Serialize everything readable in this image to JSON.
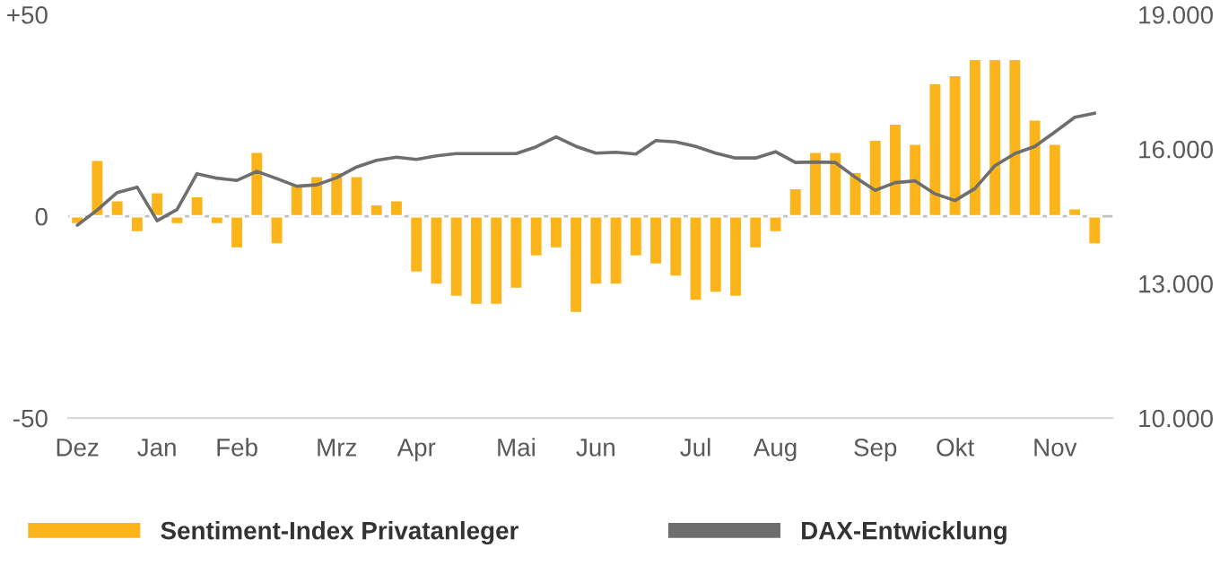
{
  "chart_data": {
    "type": "bar",
    "categories": [
      "Dez",
      null,
      null,
      null,
      "Jan",
      null,
      null,
      null,
      "Feb",
      null,
      null,
      null,
      null,
      "Mrz",
      null,
      null,
      null,
      "Apr",
      null,
      null,
      null,
      null,
      "Mai",
      null,
      null,
      null,
      "Jun",
      null,
      null,
      null,
      null,
      "Jul",
      null,
      null,
      null,
      "Aug",
      null,
      null,
      null,
      null,
      "Sep",
      null,
      null,
      null,
      "Okt",
      null,
      null,
      null,
      null,
      "Nov",
      null,
      null
    ],
    "series": [
      {
        "name": "Sentiment-Index Privatanleger",
        "color": "#fbb41a",
        "values": [
          -2,
          14,
          4,
          -4,
          6,
          -2,
          5,
          -2,
          -8,
          16,
          -7,
          8,
          10,
          11,
          10,
          3,
          4,
          -14,
          -17,
          -20,
          -22,
          -22,
          -18,
          -10,
          -8,
          -24,
          -17,
          -17,
          -10,
          -12,
          -15,
          -21,
          -19,
          -20,
          -8,
          -4,
          7,
          16,
          16,
          11,
          19,
          23,
          18,
          33,
          35,
          39,
          39,
          39,
          24,
          18,
          2,
          -7
        ]
      },
      {
        "name": "DAX-Entwicklung",
        "type": "line",
        "axis": "y2",
        "color": "#6e6e6e",
        "values": [
          14300,
          14640,
          15030,
          15150,
          14400,
          14650,
          15450,
          15350,
          15300,
          15500,
          15340,
          15170,
          15200,
          15360,
          15600,
          15750,
          15820,
          15770,
          15850,
          15900,
          15900,
          15900,
          15900,
          16050,
          16270,
          16060,
          15910,
          15930,
          15890,
          16190,
          16160,
          16060,
          15910,
          15800,
          15800,
          15940,
          15700,
          15710,
          15700,
          15370,
          15080,
          15250,
          15290,
          15000,
          14850,
          15120,
          15630,
          15900,
          16060,
          16380,
          16710,
          16800
        ]
      }
    ],
    "ylim": [
      -50,
      50
    ],
    "yticks": [
      {
        "value": -50,
        "label": "-50"
      },
      {
        "value": 0,
        "label": "0"
      },
      {
        "value": 50,
        "label": "+50"
      }
    ],
    "y2lim": [
      10000,
      19000
    ],
    "y2ticks": [
      {
        "value": 10000,
        "label": "10.000"
      },
      {
        "value": 13000,
        "label": "13.000"
      },
      {
        "value": 16000,
        "label": "16.000"
      },
      {
        "value": 19000,
        "label": "19.000"
      }
    ],
    "ref_lines": [
      {
        "axis": "y",
        "value": 0,
        "color": "#c0c0c0"
      }
    ],
    "legend": "bottom",
    "line_style": "solid",
    "marker": "none"
  }
}
